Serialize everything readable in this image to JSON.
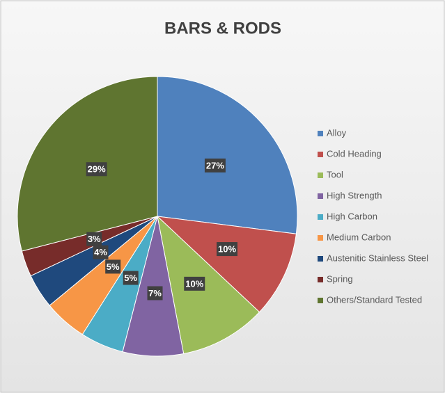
{
  "chart_data": {
    "type": "pie",
    "title": "BARS & RODS",
    "categories": [
      "Alloy",
      "Cold Heading",
      "Tool",
      "High Strength",
      "High Carbon",
      "Medium Carbon",
      "Austenitic Stainless Steel",
      "Spring",
      "Others/Standard Tested"
    ],
    "values": [
      27,
      10,
      10,
      7,
      5,
      5,
      4,
      3,
      29
    ],
    "value_labels": [
      "27%",
      "10%",
      "10%",
      "7%",
      "5%",
      "5%",
      "4%",
      "3%",
      "29%"
    ],
    "colors": [
      "#4f81bd",
      "#c0504d",
      "#9bbb59",
      "#8064a2",
      "#4bacc6",
      "#f79646",
      "#1f497d",
      "#772c2a",
      "#5f7530"
    ],
    "legend": "right"
  }
}
